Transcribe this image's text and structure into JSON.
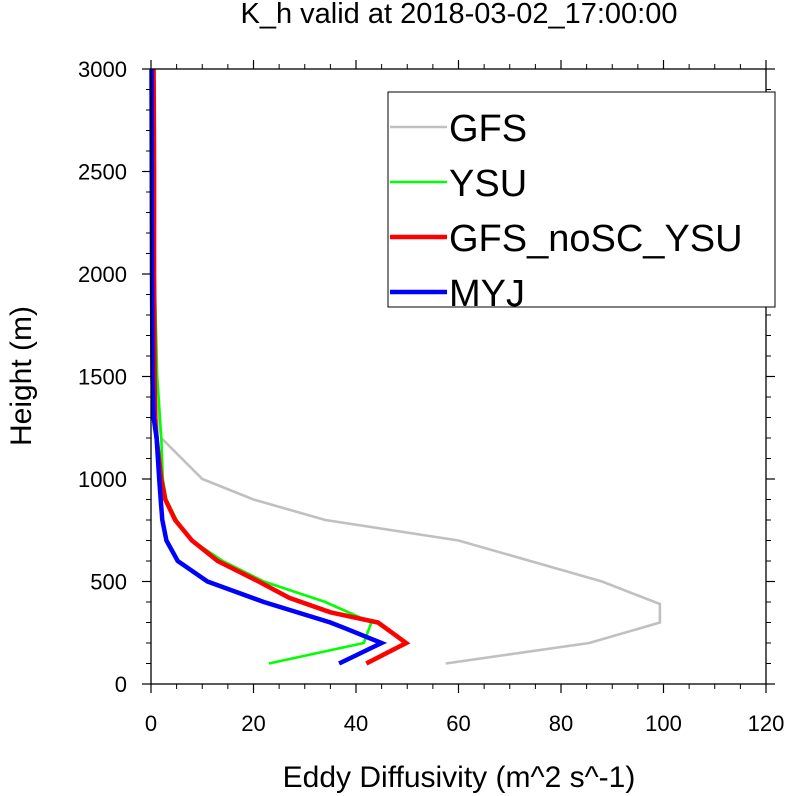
{
  "chart_data": {
    "type": "line",
    "title": "K_h valid at 2018-03-02_17:00:00",
    "xlabel": "Eddy Diffusivity (m^2 s^-1)",
    "ylabel": "Height (m)",
    "xlim": [
      0,
      120
    ],
    "ylim": [
      0,
      3000
    ],
    "xticks": [
      0,
      20,
      40,
      60,
      80,
      100,
      120
    ],
    "yticks": [
      0,
      500,
      1000,
      1500,
      2000,
      2500,
      3000
    ],
    "xtick_labels": [
      "0",
      "20",
      "40",
      "60",
      "80",
      "100",
      "120"
    ],
    "ytick_labels": [
      "0",
      "500",
      "1000",
      "1500",
      "2000",
      "2500",
      "3000"
    ],
    "grid": false,
    "legend_position": "top-right",
    "series": [
      {
        "name": "GFS",
        "color": "#c0c0c0",
        "line_width": "thin",
        "points": [
          [
            57.5,
            100
          ],
          [
            85.5,
            200
          ],
          [
            99.3,
            300
          ],
          [
            99.3,
            390
          ],
          [
            88,
            500
          ],
          [
            60,
            700
          ],
          [
            34,
            800
          ],
          [
            20,
            900
          ],
          [
            10,
            1000
          ],
          [
            2,
            1200
          ],
          [
            0.3,
            1500
          ],
          [
            0.2,
            2000
          ],
          [
            0.1,
            3000
          ]
        ]
      },
      {
        "name": "YSU",
        "color": "#00ff00",
        "line_width": "thin",
        "points": [
          [
            23,
            100
          ],
          [
            41.5,
            200
          ],
          [
            43,
            300
          ],
          [
            34,
            400
          ],
          [
            22,
            500
          ],
          [
            14,
            600
          ],
          [
            8,
            700
          ],
          [
            5,
            800
          ],
          [
            3,
            900
          ],
          [
            2.3,
            1000
          ],
          [
            2,
            1200
          ],
          [
            1.2,
            1500
          ],
          [
            0.7,
            2000
          ],
          [
            0.3,
            2500
          ],
          [
            0.1,
            3000
          ]
        ]
      },
      {
        "name": "GFS_noSC_YSU",
        "color": "#ff0000",
        "line_width": "thick",
        "points": [
          [
            42,
            100
          ],
          [
            49.8,
            200
          ],
          [
            44.3,
            300
          ],
          [
            35,
            350
          ],
          [
            27,
            420
          ],
          [
            21,
            500
          ],
          [
            13,
            600
          ],
          [
            8,
            700
          ],
          [
            4.7,
            800
          ],
          [
            2.8,
            900
          ],
          [
            2,
            1000
          ],
          [
            1.1,
            1200
          ],
          [
            0.8,
            1300
          ],
          [
            0.7,
            1500
          ],
          [
            0.6,
            2000
          ],
          [
            0.6,
            2500
          ],
          [
            0.5,
            3000
          ]
        ]
      },
      {
        "name": "MYJ",
        "color": "#0000ff",
        "line_width": "thick",
        "points": [
          [
            36.7,
            100
          ],
          [
            45,
            200
          ],
          [
            38,
            270
          ],
          [
            35,
            300
          ],
          [
            22,
            400
          ],
          [
            11,
            500
          ],
          [
            5.2,
            600
          ],
          [
            3,
            700
          ],
          [
            2.2,
            800
          ],
          [
            1.9,
            900
          ],
          [
            1.6,
            1000
          ],
          [
            1.1,
            1200
          ],
          [
            0.5,
            1300
          ],
          [
            0.3,
            1500
          ],
          [
            0.2,
            2000
          ],
          [
            0.1,
            3000
          ]
        ]
      }
    ]
  }
}
